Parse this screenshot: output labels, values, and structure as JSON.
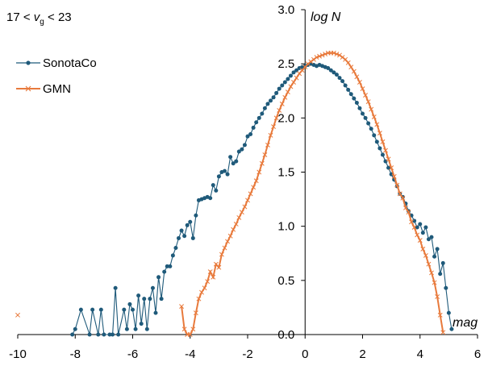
{
  "chart_data": {
    "type": "line",
    "title": "",
    "condition": {
      "prefix": "17 < ",
      "var": "v",
      "sub": "g",
      "suffix": " < 23"
    },
    "xlabel": "mag",
    "ylabel": "log N",
    "xlim": [
      -10,
      6
    ],
    "ylim": [
      0,
      3
    ],
    "x_ticks": [
      "-10",
      "-8",
      "-6",
      "-4",
      "-2",
      "0",
      "2",
      "4",
      "6"
    ],
    "y_ticks": [
      "0.0",
      "0.5",
      "1.0",
      "1.5",
      "2.0",
      "2.5",
      "3.0"
    ],
    "grid": false,
    "legend_position": "top-left",
    "series": [
      {
        "name": "SonotaCo",
        "color": "#1F5A7A",
        "marker": "circle",
        "points": [
          [
            -8.1,
            0.0
          ],
          [
            -8.0,
            0.05
          ],
          [
            -7.8,
            0.23
          ],
          [
            -7.5,
            0.0
          ],
          [
            -7.4,
            0.23
          ],
          [
            -7.2,
            0.0
          ],
          [
            -7.1,
            0.23
          ],
          [
            -7.0,
            0.0
          ],
          [
            -6.8,
            0.0
          ],
          [
            -6.7,
            0.0
          ],
          [
            -6.6,
            0.43
          ],
          [
            -6.5,
            0.0
          ],
          [
            -6.3,
            0.23
          ],
          [
            -6.2,
            0.05
          ],
          [
            -6.1,
            0.28
          ],
          [
            -6.0,
            0.23
          ],
          [
            -5.9,
            0.05
          ],
          [
            -5.8,
            0.36
          ],
          [
            -5.7,
            0.1
          ],
          [
            -5.6,
            0.33
          ],
          [
            -5.5,
            0.05
          ],
          [
            -5.4,
            0.33
          ],
          [
            -5.3,
            0.43
          ],
          [
            -5.2,
            0.2
          ],
          [
            -5.1,
            0.53
          ],
          [
            -5.0,
            0.33
          ],
          [
            -4.9,
            0.58
          ],
          [
            -4.8,
            0.63
          ],
          [
            -4.7,
            0.63
          ],
          [
            -4.6,
            0.73
          ],
          [
            -4.5,
            0.8
          ],
          [
            -4.4,
            0.89
          ],
          [
            -4.3,
            0.96
          ],
          [
            -4.2,
            0.91
          ],
          [
            -4.1,
            1.01
          ],
          [
            -4.0,
            1.04
          ],
          [
            -3.9,
            0.89
          ],
          [
            -3.8,
            1.1
          ],
          [
            -3.7,
            1.24
          ],
          [
            -3.6,
            1.25
          ],
          [
            -3.5,
            1.26
          ],
          [
            -3.4,
            1.27
          ],
          [
            -3.3,
            1.26
          ],
          [
            -3.2,
            1.38
          ],
          [
            -3.1,
            1.33
          ],
          [
            -3.0,
            1.46
          ],
          [
            -2.9,
            1.5
          ],
          [
            -2.8,
            1.51
          ],
          [
            -2.7,
            1.48
          ],
          [
            -2.6,
            1.64
          ],
          [
            -2.5,
            1.58
          ],
          [
            -2.4,
            1.6
          ],
          [
            -2.3,
            1.69
          ],
          [
            -2.2,
            1.71
          ],
          [
            -2.1,
            1.75
          ],
          [
            -2.0,
            1.83
          ],
          [
            -1.9,
            1.85
          ],
          [
            -1.8,
            1.91
          ],
          [
            -1.7,
            1.96
          ],
          [
            -1.6,
            2.0
          ],
          [
            -1.5,
            2.04
          ],
          [
            -1.4,
            2.09
          ],
          [
            -1.3,
            2.13
          ],
          [
            -1.2,
            2.16
          ],
          [
            -1.1,
            2.19
          ],
          [
            -1.0,
            2.23
          ],
          [
            -0.9,
            2.27
          ],
          [
            -0.8,
            2.3
          ],
          [
            -0.7,
            2.33
          ],
          [
            -0.6,
            2.36
          ],
          [
            -0.5,
            2.39
          ],
          [
            -0.4,
            2.42
          ],
          [
            -0.3,
            2.44
          ],
          [
            -0.2,
            2.46
          ],
          [
            -0.1,
            2.47
          ],
          [
            0.0,
            2.48
          ],
          [
            0.1,
            2.49
          ],
          [
            0.2,
            2.5
          ],
          [
            0.3,
            2.49
          ],
          [
            0.4,
            2.48
          ],
          [
            0.5,
            2.49
          ],
          [
            0.6,
            2.48
          ],
          [
            0.7,
            2.47
          ],
          [
            0.8,
            2.46
          ],
          [
            0.9,
            2.44
          ],
          [
            1.0,
            2.42
          ],
          [
            1.1,
            2.4
          ],
          [
            1.2,
            2.37
          ],
          [
            1.3,
            2.34
          ],
          [
            1.4,
            2.3
          ],
          [
            1.5,
            2.26
          ],
          [
            1.6,
            2.22
          ],
          [
            1.7,
            2.18
          ],
          [
            1.8,
            2.14
          ],
          [
            1.9,
            2.09
          ],
          [
            2.0,
            2.04
          ],
          [
            2.1,
            2.0
          ],
          [
            2.2,
            1.95
          ],
          [
            2.3,
            1.9
          ],
          [
            2.4,
            1.84
          ],
          [
            2.5,
            1.78
          ],
          [
            2.6,
            1.72
          ],
          [
            2.7,
            1.66
          ],
          [
            2.8,
            1.6
          ],
          [
            2.9,
            1.54
          ],
          [
            3.0,
            1.48
          ],
          [
            3.1,
            1.43
          ],
          [
            3.2,
            1.37
          ],
          [
            3.3,
            1.3
          ],
          [
            3.4,
            1.27
          ],
          [
            3.5,
            1.21
          ],
          [
            3.6,
            1.14
          ],
          [
            3.7,
            1.1
          ],
          [
            3.8,
            1.05
          ],
          [
            3.9,
            0.99
          ],
          [
            4.0,
            1.02
          ],
          [
            4.1,
            0.94
          ],
          [
            4.2,
            0.99
          ],
          [
            4.3,
            0.88
          ],
          [
            4.4,
            0.9
          ],
          [
            4.5,
            0.72
          ],
          [
            4.6,
            0.79
          ],
          [
            4.7,
            0.56
          ],
          [
            4.8,
            0.66
          ],
          [
            4.9,
            0.43
          ],
          [
            5.0,
            0.2
          ],
          [
            5.1,
            0.05
          ]
        ]
      },
      {
        "name": "GMN",
        "color": "#E87A3C",
        "marker": "x",
        "points": [
          [
            -10.0,
            0.18
          ],
          [
            -4.3,
            0.26
          ],
          [
            -4.2,
            0.05
          ],
          [
            -4.1,
            0.0
          ],
          [
            -4.0,
            0.0
          ],
          [
            -3.9,
            0.05
          ],
          [
            -3.8,
            0.2
          ],
          [
            -3.7,
            0.33
          ],
          [
            -3.6,
            0.39
          ],
          [
            -3.5,
            0.43
          ],
          [
            -3.4,
            0.49
          ],
          [
            -3.3,
            0.58
          ],
          [
            -3.2,
            0.53
          ],
          [
            -3.1,
            0.65
          ],
          [
            -3.0,
            0.62
          ],
          [
            -2.9,
            0.74
          ],
          [
            -2.8,
            0.8
          ],
          [
            -2.7,
            0.86
          ],
          [
            -2.6,
            0.91
          ],
          [
            -2.5,
            0.97
          ],
          [
            -2.4,
            1.02
          ],
          [
            -2.3,
            1.08
          ],
          [
            -2.2,
            1.13
          ],
          [
            -2.1,
            1.18
          ],
          [
            -2.0,
            1.24
          ],
          [
            -1.9,
            1.3
          ],
          [
            -1.8,
            1.36
          ],
          [
            -1.7,
            1.42
          ],
          [
            -1.6,
            1.5
          ],
          [
            -1.5,
            1.58
          ],
          [
            -1.4,
            1.66
          ],
          [
            -1.3,
            1.75
          ],
          [
            -1.2,
            1.84
          ],
          [
            -1.1,
            1.92
          ],
          [
            -1.0,
            2.0
          ],
          [
            -0.9,
            2.07
          ],
          [
            -0.8,
            2.13
          ],
          [
            -0.7,
            2.19
          ],
          [
            -0.6,
            2.24
          ],
          [
            -0.5,
            2.29
          ],
          [
            -0.4,
            2.33
          ],
          [
            -0.3,
            2.37
          ],
          [
            -0.2,
            2.41
          ],
          [
            -0.1,
            2.44
          ],
          [
            0.0,
            2.47
          ],
          [
            0.1,
            2.5
          ],
          [
            0.2,
            2.52
          ],
          [
            0.3,
            2.54
          ],
          [
            0.4,
            2.56
          ],
          [
            0.5,
            2.57
          ],
          [
            0.6,
            2.58
          ],
          [
            0.7,
            2.59
          ],
          [
            0.8,
            2.6
          ],
          [
            0.9,
            2.6
          ],
          [
            1.0,
            2.6
          ],
          [
            1.1,
            2.59
          ],
          [
            1.2,
            2.58
          ],
          [
            1.3,
            2.56
          ],
          [
            1.4,
            2.54
          ],
          [
            1.5,
            2.51
          ],
          [
            1.6,
            2.47
          ],
          [
            1.7,
            2.43
          ],
          [
            1.8,
            2.38
          ],
          [
            1.9,
            2.33
          ],
          [
            2.0,
            2.27
          ],
          [
            2.1,
            2.21
          ],
          [
            2.2,
            2.15
          ],
          [
            2.3,
            2.08
          ],
          [
            2.4,
            2.01
          ],
          [
            2.5,
            1.94
          ],
          [
            2.6,
            1.86
          ],
          [
            2.7,
            1.78
          ],
          [
            2.8,
            1.7
          ],
          [
            2.9,
            1.62
          ],
          [
            3.0,
            1.54
          ],
          [
            3.1,
            1.46
          ],
          [
            3.2,
            1.38
          ],
          [
            3.3,
            1.3
          ],
          [
            3.4,
            1.26
          ],
          [
            3.5,
            1.17
          ],
          [
            3.6,
            1.13
          ],
          [
            3.7,
            1.04
          ],
          [
            3.8,
            0.99
          ],
          [
            3.9,
            0.92
          ],
          [
            4.0,
            0.87
          ],
          [
            4.1,
            0.79
          ],
          [
            4.2,
            0.73
          ],
          [
            4.3,
            0.65
          ],
          [
            4.4,
            0.57
          ],
          [
            4.5,
            0.48
          ],
          [
            4.6,
            0.35
          ],
          [
            4.7,
            0.18
          ],
          [
            4.8,
            0.02
          ]
        ]
      }
    ]
  }
}
